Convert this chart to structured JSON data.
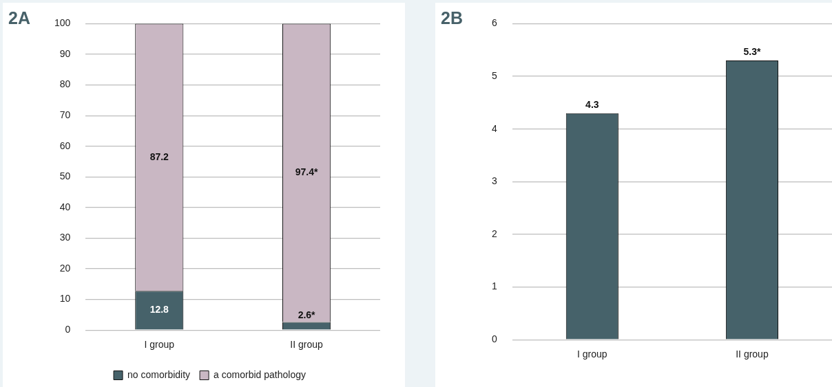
{
  "chart_data": [
    {
      "type": "bar",
      "title": "2A",
      "categories": [
        "I group",
        "II group"
      ],
      "stacked": true,
      "legend": "bottom",
      "grid": "y",
      "series": [
        {
          "name": "no comorbidity",
          "color": "#46626a",
          "values": [
            12.8,
            2.6
          ],
          "value_labels": [
            "12.8",
            "2.6*"
          ]
        },
        {
          "name": "a comorbid pathology",
          "color": "#c9b7c3",
          "values": [
            87.2,
            97.4
          ],
          "value_labels": [
            "87.2",
            "97.4*"
          ]
        }
      ],
      "ylim": [
        0,
        100
      ],
      "yticks": [
        0,
        10,
        20,
        30,
        40,
        50,
        60,
        70,
        80,
        90,
        100
      ]
    },
    {
      "type": "bar",
      "title": "2B",
      "categories": [
        "I group",
        "II group"
      ],
      "grid": "y",
      "series": [
        {
          "color": "#46626a",
          "values": [
            4.3,
            5.3
          ],
          "value_labels": [
            "4.3",
            "5.3*"
          ]
        }
      ],
      "ylim": [
        0,
        6
      ],
      "yticks": [
        0,
        1,
        2,
        3,
        4,
        5,
        6
      ]
    }
  ]
}
